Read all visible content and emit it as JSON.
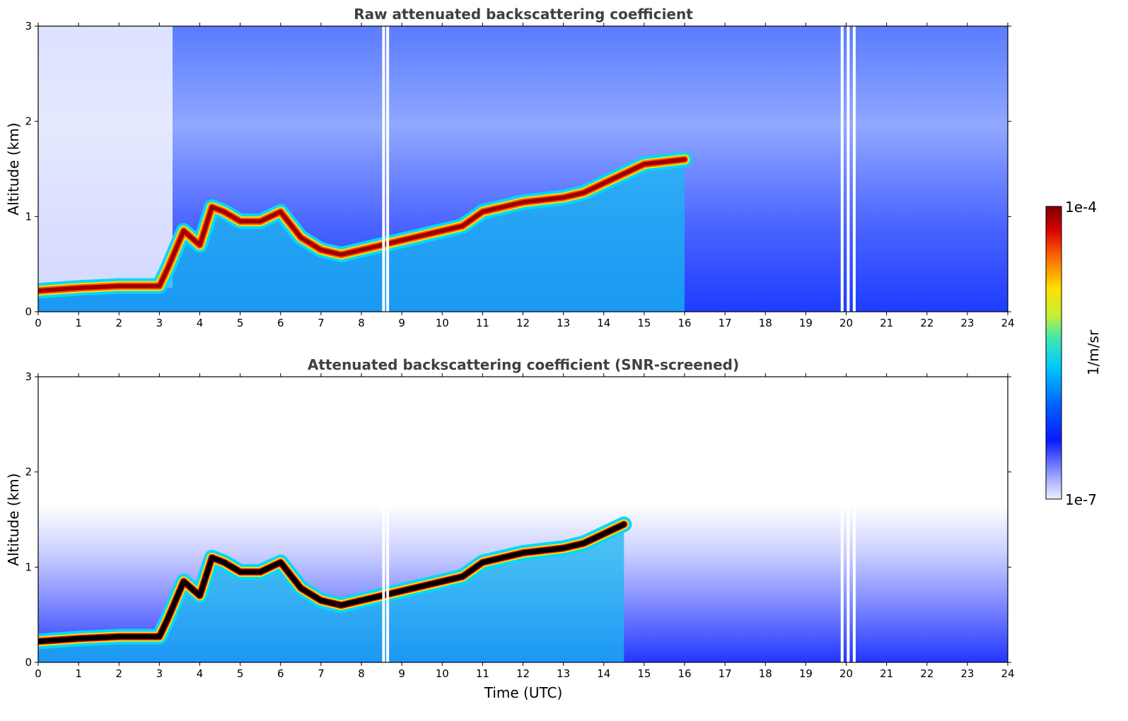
{
  "chart_data": [
    {
      "type": "heatmap",
      "title": "Raw attenuated backscattering coefficient",
      "xlabel": "",
      "ylabel": "Altitude (km)",
      "xlim": [
        0,
        24
      ],
      "ylim": [
        0,
        3
      ],
      "xticks": [
        0,
        1,
        2,
        3,
        4,
        5,
        6,
        7,
        8,
        9,
        10,
        11,
        12,
        13,
        14,
        15,
        16,
        17,
        18,
        19,
        20,
        21,
        22,
        23,
        24
      ],
      "yticks": [
        0,
        1,
        2,
        3
      ],
      "layer_profile": {
        "x": [
          0,
          1,
          2,
          3,
          3.2,
          3.6,
          4.0,
          4.3,
          4.6,
          5.0,
          5.5,
          6.0,
          6.5,
          7.0,
          7.5,
          8.0,
          9.0,
          10.0,
          10.5,
          11.0,
          12.0,
          13.0,
          13.5,
          14.0,
          14.5,
          15.0,
          16.0
        ],
        "y": [
          0.22,
          0.25,
          0.27,
          0.27,
          0.45,
          0.85,
          0.7,
          1.1,
          1.05,
          0.95,
          0.95,
          1.05,
          0.78,
          0.65,
          0.6,
          0.65,
          0.75,
          0.85,
          0.9,
          1.05,
          1.15,
          1.2,
          1.25,
          1.35,
          1.45,
          1.55,
          1.6
        ]
      },
      "gaps_x": [
        8.55,
        8.65,
        19.9,
        20.05,
        20.2
      ]
    },
    {
      "type": "heatmap",
      "title": "Attenuated backscattering coefficient (SNR-screened)",
      "xlabel": "Time (UTC)",
      "ylabel": "Altitude (km)",
      "xlim": [
        0,
        24
      ],
      "ylim": [
        0,
        3
      ],
      "xticks": [
        0,
        1,
        2,
        3,
        4,
        5,
        6,
        7,
        8,
        9,
        10,
        11,
        12,
        13,
        14,
        15,
        16,
        17,
        18,
        19,
        20,
        21,
        22,
        23,
        24
      ],
      "yticks": [
        0,
        1,
        2,
        3
      ],
      "layer_profile": {
        "x": [
          0,
          1,
          2,
          3,
          3.2,
          3.6,
          4.0,
          4.3,
          4.6,
          5.0,
          5.5,
          6.0,
          6.5,
          7.0,
          7.5,
          8.0,
          9.0,
          10.0,
          10.5,
          11.0,
          12.0,
          13.0,
          13.5,
          14.0,
          14.5
        ],
        "y": [
          0.22,
          0.25,
          0.27,
          0.27,
          0.45,
          0.85,
          0.7,
          1.1,
          1.05,
          0.95,
          0.95,
          1.05,
          0.78,
          0.65,
          0.6,
          0.65,
          0.75,
          0.85,
          0.9,
          1.05,
          1.15,
          1.2,
          1.25,
          1.35,
          1.45
        ]
      },
      "gaps_x": [
        8.55,
        8.65,
        19.9,
        20.05,
        20.2
      ]
    }
  ],
  "colorbar": {
    "label": "1/m/sr",
    "max_label": "1e-4",
    "min_label": "1e-7",
    "colors": [
      "#eef0ff",
      "#c7ccff",
      "#9aa2ff",
      "#6e78ff",
      "#3a48ff",
      "#0a1aff",
      "#0050ff",
      "#0090ff",
      "#00c8ff",
      "#30e6c8",
      "#80f080",
      "#d0f030",
      "#ffe000",
      "#ffa000",
      "#ff5000",
      "#e00000",
      "#b00000",
      "#800000"
    ]
  }
}
